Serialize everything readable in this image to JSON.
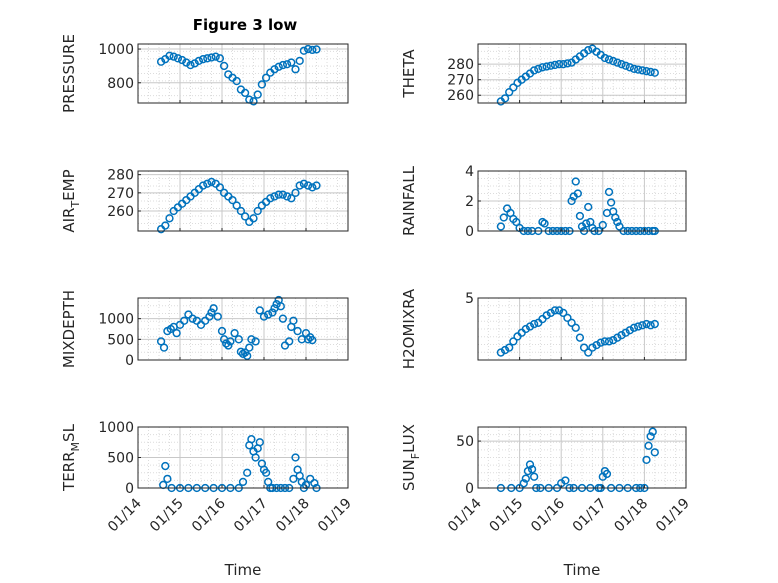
{
  "chart_data": [
    {
      "type": "scatter",
      "title": "Figure 3 low",
      "ylabel": "PRESSURE",
      "xlabel": "",
      "xlim": [
        "01/14",
        "01/19"
      ],
      "ylim": [
        680,
        1030
      ],
      "yticks": [
        800,
        1000
      ],
      "grid": true,
      "x": [
        14.55,
        14.65,
        14.75,
        14.85,
        14.95,
        15.05,
        15.15,
        15.25,
        15.35,
        15.45,
        15.55,
        15.65,
        15.75,
        15.85,
        15.95,
        16.05,
        16.15,
        16.25,
        16.35,
        16.45,
        16.55,
        16.65,
        16.75,
        16.85,
        16.95,
        17.05,
        17.15,
        17.25,
        17.35,
        17.45,
        17.55,
        17.65,
        17.75,
        17.85,
        17.95,
        18.05,
        18.15,
        18.25
      ],
      "values": [
        925,
        940,
        960,
        955,
        945,
        935,
        920,
        905,
        915,
        930,
        940,
        945,
        950,
        955,
        945,
        900,
        850,
        830,
        810,
        760,
        740,
        700,
        690,
        730,
        790,
        830,
        860,
        880,
        895,
        905,
        910,
        920,
        880,
        930,
        990,
        1000,
        995,
        998
      ]
    },
    {
      "type": "scatter",
      "title": "",
      "ylabel": "THETA",
      "xlabel": "",
      "xlim": [
        "01/14",
        "01/19"
      ],
      "ylim": [
        255,
        293
      ],
      "yticks": [
        260,
        270,
        280
      ],
      "grid": true,
      "x": [
        14.55,
        14.65,
        14.75,
        14.85,
        14.95,
        15.05,
        15.15,
        15.25,
        15.35,
        15.45,
        15.55,
        15.65,
        15.75,
        15.85,
        15.95,
        16.05,
        16.15,
        16.25,
        16.35,
        16.45,
        16.55,
        16.65,
        16.75,
        16.85,
        16.95,
        17.05,
        17.15,
        17.25,
        17.35,
        17.45,
        17.55,
        17.65,
        17.75,
        17.85,
        17.95,
        18.05,
        18.15,
        18.25
      ],
      "values": [
        256,
        258,
        262,
        265,
        268,
        270,
        272,
        274,
        276,
        277,
        278,
        278.5,
        279,
        279.5,
        280,
        280,
        280.5,
        281,
        283,
        285,
        287,
        289,
        290,
        288,
        286,
        284,
        283,
        282,
        281,
        280,
        279,
        278,
        277,
        276.5,
        276,
        275.5,
        275,
        274.5
      ]
    },
    {
      "type": "scatter",
      "title": "",
      "ylabel": "AIR_TEMP",
      "xlabel": "",
      "xlim": [
        "01/14",
        "01/19"
      ],
      "ylim": [
        249,
        282
      ],
      "yticks": [
        260,
        270,
        280
      ],
      "grid": true,
      "x": [
        14.55,
        14.65,
        14.75,
        14.85,
        14.95,
        15.05,
        15.15,
        15.25,
        15.35,
        15.45,
        15.55,
        15.65,
        15.75,
        15.85,
        15.95,
        16.05,
        16.15,
        16.25,
        16.35,
        16.45,
        16.55,
        16.65,
        16.75,
        16.85,
        16.95,
        17.05,
        17.15,
        17.25,
        17.35,
        17.45,
        17.55,
        17.65,
        17.75,
        17.85,
        17.95,
        18.05,
        18.15,
        18.25
      ],
      "values": [
        250,
        252,
        256,
        260,
        262,
        264,
        266,
        268,
        270,
        272,
        274,
        275,
        276,
        275,
        273,
        270,
        268,
        266,
        263,
        260,
        257,
        254,
        256,
        260,
        263,
        265,
        267,
        268,
        269,
        269,
        268,
        267,
        270,
        274,
        275,
        274,
        273,
        274
      ]
    },
    {
      "type": "scatter",
      "title": "",
      "ylabel": "RAINFALL",
      "xlabel": "",
      "xlim": [
        "01/14",
        "01/19"
      ],
      "ylim": [
        0,
        4
      ],
      "yticks": [
        0,
        2,
        4
      ],
      "grid": true,
      "x": [
        14.55,
        14.62,
        14.7,
        14.78,
        14.85,
        14.92,
        15.0,
        15.1,
        15.2,
        15.3,
        15.45,
        15.55,
        15.6,
        15.7,
        15.8,
        15.9,
        16.0,
        16.1,
        16.2,
        16.25,
        16.3,
        16.35,
        16.4,
        16.45,
        16.5,
        16.55,
        16.6,
        16.65,
        16.7,
        16.75,
        16.8,
        16.9,
        17.0,
        17.1,
        17.15,
        17.2,
        17.25,
        17.3,
        17.35,
        17.4,
        17.5,
        17.6,
        17.7,
        17.8,
        17.9,
        18.0,
        18.1,
        18.2,
        18.25
      ],
      "values": [
        0.3,
        0.9,
        1.5,
        1.2,
        0.8,
        0.6,
        0.2,
        0,
        0,
        0,
        0,
        0.6,
        0.5,
        0,
        0,
        0,
        0,
        0,
        0,
        2.0,
        2.3,
        3.3,
        2.5,
        1.0,
        0.3,
        0,
        0.5,
        1.6,
        0.6,
        0.2,
        0,
        0,
        0.4,
        1.2,
        2.6,
        1.9,
        1.3,
        0.9,
        0.6,
        0.3,
        0,
        0,
        0,
        0,
        0,
        0,
        0,
        0,
        0
      ]
    },
    {
      "type": "scatter",
      "title": "",
      "ylabel": "MIXDEPTH",
      "xlabel": "",
      "xlim": [
        "01/14",
        "01/19"
      ],
      "ylim": [
        0,
        1500
      ],
      "yticks": [
        0,
        500,
        1000
      ],
      "grid": true,
      "x": [
        14.55,
        14.62,
        14.7,
        14.78,
        14.85,
        14.92,
        15.0,
        15.1,
        15.2,
        15.3,
        15.4,
        15.5,
        15.6,
        15.7,
        15.75,
        15.8,
        15.9,
        16.0,
        16.05,
        16.1,
        16.15,
        16.2,
        16.3,
        16.4,
        16.45,
        16.5,
        16.55,
        16.6,
        16.65,
        16.7,
        16.8,
        16.9,
        17.0,
        17.1,
        17.2,
        17.25,
        17.3,
        17.35,
        17.4,
        17.45,
        17.5,
        17.6,
        17.65,
        17.7,
        17.8,
        17.9,
        18.0,
        18.05,
        18.1,
        18.15
      ],
      "values": [
        450,
        300,
        700,
        750,
        800,
        650,
        850,
        950,
        1100,
        1000,
        950,
        850,
        950,
        1050,
        1150,
        1250,
        1050,
        700,
        500,
        400,
        350,
        450,
        650,
        500,
        200,
        150,
        180,
        100,
        300,
        500,
        450,
        1200,
        1050,
        1100,
        1150,
        1250,
        1350,
        1450,
        1300,
        1000,
        350,
        450,
        800,
        950,
        700,
        500,
        650,
        500,
        550,
        480
      ]
    },
    {
      "type": "scatter",
      "title": "",
      "ylabel": "H2OMIXRA",
      "xlabel": "",
      "xlim": [
        "01/14",
        "01/19"
      ],
      "ylim": [
        0,
        5
      ],
      "yticks": [
        5
      ],
      "grid": true,
      "x": [
        14.55,
        14.65,
        14.75,
        14.85,
        14.95,
        15.05,
        15.15,
        15.25,
        15.35,
        15.45,
        15.55,
        15.65,
        15.75,
        15.85,
        15.95,
        16.05,
        16.15,
        16.25,
        16.35,
        16.45,
        16.55,
        16.65,
        16.75,
        16.85,
        16.95,
        17.05,
        17.15,
        17.25,
        17.35,
        17.45,
        17.55,
        17.65,
        17.75,
        17.85,
        17.95,
        18.05,
        18.15,
        18.25
      ],
      "values": [
        0.6,
        0.8,
        1.0,
        1.5,
        1.9,
        2.2,
        2.5,
        2.7,
        2.9,
        3.0,
        3.3,
        3.6,
        3.8,
        4.0,
        4.0,
        3.8,
        3.4,
        3.0,
        2.6,
        1.8,
        1.0,
        0.6,
        1.0,
        1.2,
        1.4,
        1.5,
        1.5,
        1.6,
        1.8,
        2.0,
        2.2,
        2.4,
        2.6,
        2.7,
        2.8,
        2.9,
        2.8,
        2.9
      ]
    },
    {
      "type": "scatter",
      "title": "",
      "ylabel": "TERR_MSL",
      "xlabel": "Time",
      "xlim": [
        "01/14",
        "01/19"
      ],
      "ylim": [
        0,
        1000
      ],
      "yticks": [
        0,
        500,
        1000
      ],
      "grid": true,
      "xticklabels": [
        "01/14",
        "01/15",
        "01/16",
        "01/17",
        "01/18",
        "01/19"
      ],
      "x": [
        14.6,
        14.65,
        14.7,
        14.8,
        15.0,
        15.2,
        15.4,
        15.6,
        15.8,
        16.0,
        16.2,
        16.4,
        16.5,
        16.6,
        16.65,
        16.7,
        16.75,
        16.8,
        16.85,
        16.9,
        16.95,
        17.0,
        17.05,
        17.1,
        17.15,
        17.2,
        17.3,
        17.4,
        17.5,
        17.6,
        17.7,
        17.75,
        17.8,
        17.85,
        17.9,
        17.95,
        18.0,
        18.1,
        18.2,
        18.25
      ],
      "values": [
        50,
        360,
        150,
        0,
        0,
        0,
        0,
        0,
        0,
        0,
        0,
        0,
        100,
        250,
        700,
        800,
        600,
        500,
        650,
        750,
        400,
        300,
        250,
        100,
        0,
        0,
        0,
        0,
        0,
        0,
        150,
        500,
        300,
        200,
        100,
        0,
        50,
        150,
        80,
        0
      ]
    },
    {
      "type": "scatter",
      "title": "",
      "ylabel": "SUN_FLUX",
      "xlabel": "Time",
      "xlim": [
        "01/14",
        "01/19"
      ],
      "ylim": [
        0,
        65
      ],
      "yticks": [
        0,
        50
      ],
      "grid": true,
      "xticklabels": [
        "01/14",
        "01/15",
        "01/16",
        "01/17",
        "01/18",
        "01/19"
      ],
      "x": [
        14.55,
        14.8,
        15.0,
        15.1,
        15.15,
        15.2,
        15.25,
        15.3,
        15.35,
        15.4,
        15.5,
        15.7,
        15.9,
        16.0,
        16.1,
        16.2,
        16.3,
        16.5,
        16.7,
        16.9,
        16.95,
        17.0,
        17.05,
        17.1,
        17.2,
        17.4,
        17.6,
        17.8,
        17.9,
        18.0,
        18.05,
        18.1,
        18.15,
        18.2,
        18.25
      ],
      "values": [
        0,
        0,
        0,
        5,
        10,
        18,
        25,
        20,
        12,
        0,
        0,
        0,
        0,
        5,
        8,
        0,
        0,
        0,
        0,
        0,
        0,
        12,
        18,
        15,
        0,
        0,
        0,
        0,
        0,
        0,
        30,
        45,
        55,
        60,
        38
      ]
    }
  ]
}
